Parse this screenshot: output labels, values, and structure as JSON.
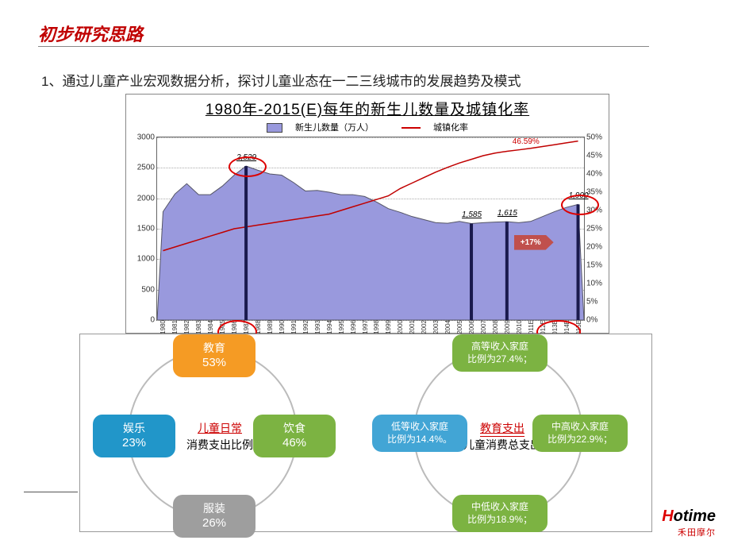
{
  "heading": {
    "text": "初步研究思路",
    "color": "#c00000"
  },
  "subtext": "1、通过儿童产业宏观数据分析，探讨儿童业态在一二三线城市的发展趋势及模式",
  "chart": {
    "type": "combo",
    "title": "1980年-2015(E)每年的新生儿数量及城镇化率",
    "legend": {
      "series1": "新生儿数量（万人）",
      "series2": "城镇化率"
    },
    "y_left": {
      "min": 0,
      "max": 3000,
      "step": 500
    },
    "y_right": {
      "min": 0,
      "max": 50,
      "step": 5,
      "suffix": "%"
    },
    "years": [
      1980,
      1981,
      1982,
      1983,
      1984,
      1985,
      1986,
      1987,
      1988,
      1989,
      1990,
      1991,
      1992,
      1993,
      1994,
      1995,
      1996,
      1997,
      1998,
      1999,
      2000,
      2001,
      2002,
      2003,
      2004,
      2005,
      2006,
      2007,
      2008,
      2009,
      2010,
      "2011E",
      "2012E",
      "2013E",
      "2014E",
      "2015E"
    ],
    "births": [
      1780,
      2070,
      2240,
      2060,
      2060,
      2200,
      2380,
      2529,
      2460,
      2400,
      2380,
      2260,
      2120,
      2130,
      2100,
      2060,
      2060,
      2030,
      1940,
      1830,
      1770,
      1700,
      1650,
      1600,
      1590,
      1620,
      1585,
      1600,
      1610,
      1615,
      1600,
      1620,
      1700,
      1780,
      1850,
      1900
    ],
    "urban": [
      19,
      20,
      21,
      22,
      23,
      24,
      25,
      25.5,
      26,
      26.5,
      27,
      27.5,
      28,
      28.5,
      29,
      30,
      31,
      32,
      33,
      34,
      36,
      37.5,
      39,
      40.5,
      41.8,
      43,
      44,
      45,
      45.7,
      46.2,
      46.59,
      47,
      47.5,
      48,
      48.5,
      49
    ],
    "annotations": {
      "peak": {
        "year": 1987,
        "value": "2,529"
      },
      "a2006": {
        "year": 2006,
        "value": "1,585"
      },
      "a2009": {
        "year": 2009,
        "value": "1,615"
      },
      "a2015": {
        "year": "2015E",
        "value": "1,900"
      },
      "urban_label": "46.59%",
      "arrow": "+17%"
    },
    "colors": {
      "area": "#9999dd",
      "line": "#c00000",
      "grid": "#aaaaaa",
      "border": "#666666",
      "bg": "#ffffff"
    }
  },
  "ring_left": {
    "center_l1": "儿童日常",
    "center_l2": "消费支出比例",
    "items": [
      {
        "label": "教育",
        "pct": "53%",
        "color": "#f59b24",
        "pos": "top"
      },
      {
        "label": "饮食",
        "pct": "46%",
        "color": "#7cb342",
        "pos": "right"
      },
      {
        "label": "服装",
        "pct": "26%",
        "color": "#9e9e9e",
        "pos": "bottom"
      },
      {
        "label": "娱乐",
        "pct": "23%",
        "color": "#2196c9",
        "pos": "left"
      }
    ]
  },
  "ring_right": {
    "center_l1": "教育支出",
    "center_l2": "儿童消费总支出",
    "items": [
      {
        "l1": "高等收入家庭",
        "l2": "比例为27.4%；",
        "color": "#7cb342",
        "pos": "top"
      },
      {
        "l1": "中高收入家庭",
        "l2": "比例为22.9%；",
        "color": "#7cb342",
        "pos": "right"
      },
      {
        "l1": "中低收入家庭",
        "l2": "比例为18.9%；",
        "color": "#7cb342",
        "pos": "bottom"
      },
      {
        "l1": "低等收入家庭",
        "l2": "比例为14.4%。",
        "color": "#42a5d5",
        "pos": "left"
      }
    ]
  },
  "logo": {
    "main": "Hotime",
    "sub": "禾田摩尔"
  }
}
